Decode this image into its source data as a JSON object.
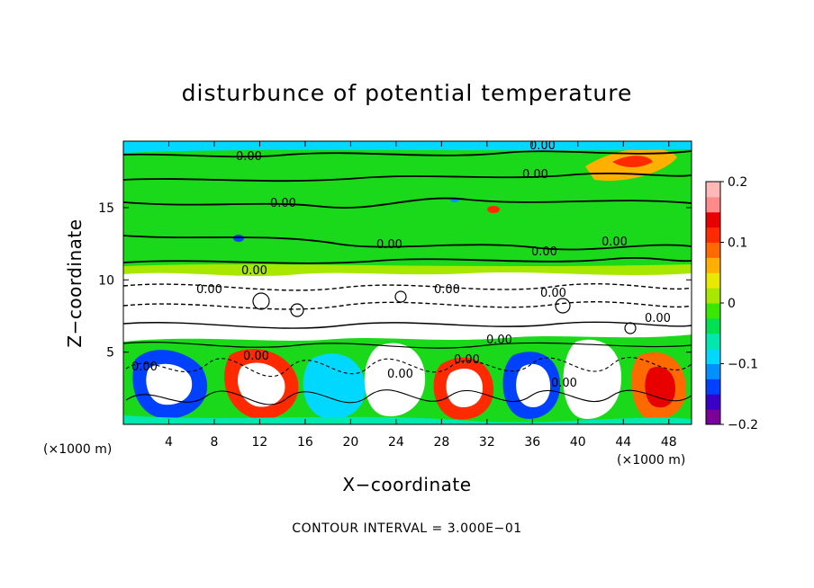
{
  "chart_data": {
    "type": "heatmap",
    "title": "disturbunce of potential temperature",
    "xlabel": "X−coordinate",
    "ylabel": "Z−coordinate",
    "x_unit": "(×1000 m)",
    "z_unit": "(×1000 m)",
    "footer": "CONTOUR INTERVAL = 3.000E−01",
    "x_ticks": [
      4,
      8,
      12,
      16,
      20,
      24,
      28,
      32,
      36,
      40,
      44,
      48
    ],
    "z_ticks": [
      5,
      10,
      15
    ],
    "xlim": [
      0,
      50
    ],
    "zlim": [
      0,
      19.6
    ],
    "colorbar": {
      "ticks": [
        0.2,
        0.1,
        0,
        -0.1,
        -0.2
      ],
      "tick_labels": [
        "0.2",
        "0.1",
        "0",
        "−0.1",
        "−0.2"
      ],
      "range": [
        -0.2,
        0.2
      ],
      "colors": [
        "#7a0099",
        "#3a00c8",
        "#0040ff",
        "#0090ff",
        "#00d8ff",
        "#00e8b0",
        "#00e050",
        "#38e800",
        "#a8e800",
        "#e8e800",
        "#ffb000",
        "#ff6a00",
        "#ff2a00",
        "#e80000",
        "#ff8a8a",
        "#ffb8b8"
      ]
    },
    "contour_labels": [
      "0.00",
      "0.00",
      "0.00",
      "0.00",
      "0.00",
      "0.00",
      "0.00",
      "0.00",
      "0.00",
      "0.00",
      "0.00",
      "0.00",
      "0.00",
      "0.00",
      "0.00",
      "0.00",
      "0.00",
      "0.00"
    ]
  }
}
